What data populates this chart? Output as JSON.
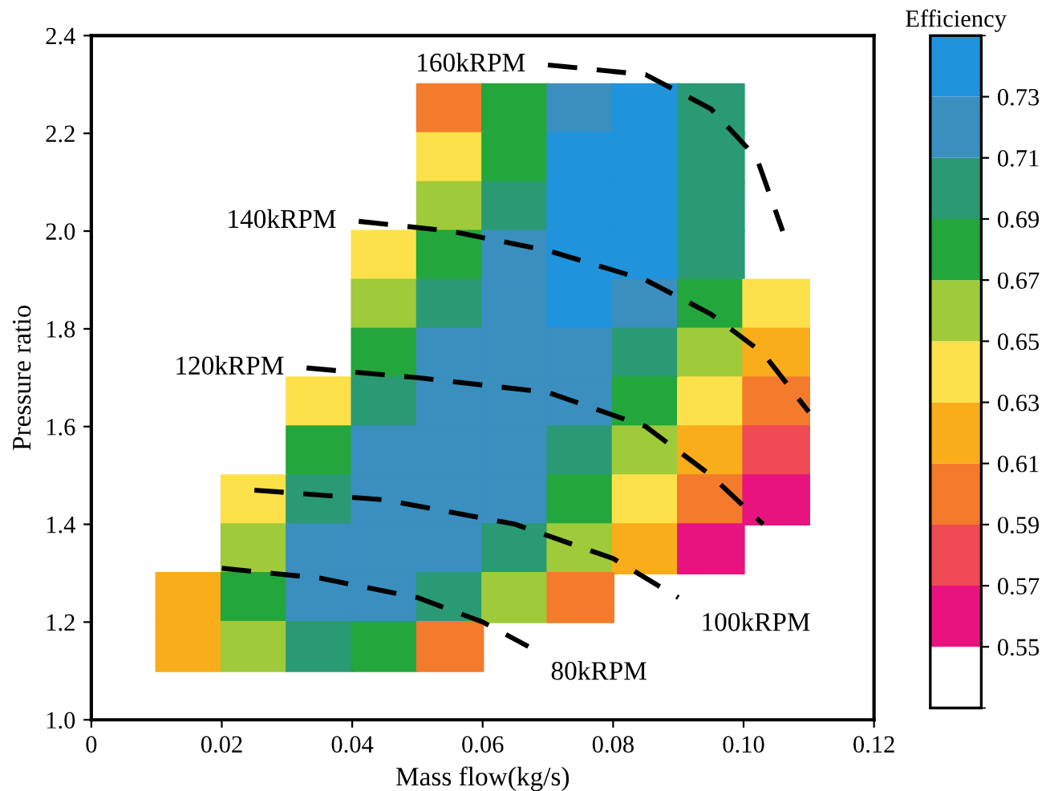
{
  "chart_data": {
    "type": "scatter",
    "xlabel": "Mass flow(kg/s)",
    "ylabel": "Pressure ratio",
    "clabel": "Efficiency",
    "colors": [
      "#ffffff",
      "#e8137f",
      "#f04a55",
      "#f47a2c",
      "#f9ad1a",
      "#fde14a",
      "#9fca3a",
      "#23a63c",
      "#2a9a74",
      "#3a8fbf",
      "#1f93dc"
    ],
    "clim": [
      0.53,
      0.75
    ],
    "cticks": [
      0.55,
      0.57,
      0.59,
      0.61,
      0.63,
      0.65,
      0.67,
      0.69,
      0.71,
      0.73
    ],
    "xlim": [
      0,
      0.12
    ],
    "xticks": [
      0,
      0.02,
      0.04,
      0.06,
      0.08,
      {
        "value": 0.1,
        "label": "0.10"
      },
      0.12
    ],
    "ylim": [
      1.0,
      2.4
    ],
    "yticks": [
      {
        "value": 1,
        "label": "1.0"
      },
      1.2,
      1.4,
      1.6,
      1.8,
      {
        "value": 2,
        "label": "2.0"
      },
      2.2,
      2.4
    ],
    "grid": false,
    "series": [
      {
        "marker": "square",
        "colors": [
          "#f47a2c",
          "#23a63c",
          "#3a8fbf",
          "#1f93dc",
          "#2a9a74",
          "#fde14a",
          "#23a63c",
          "#1f93dc",
          "#1f93dc",
          "#2a9a74",
          "#9fca3a",
          "#2a9a74",
          "#1f93dc",
          "#1f93dc",
          "#2a9a74",
          "#fde14a",
          "#23a63c",
          "#3a8fbf",
          "#1f93dc",
          "#1f93dc",
          "#2a9a74",
          "#9fca3a",
          "#2a9a74",
          "#3a8fbf",
          "#1f93dc",
          "#3a8fbf",
          "#23a63c",
          "#fde14a",
          "#23a63c",
          "#3a8fbf",
          "#3a8fbf",
          "#3a8fbf",
          "#2a9a74",
          "#9fca3a",
          "#f9ad1a",
          "#fde14a",
          "#2a9a74",
          "#3a8fbf",
          "#3a8fbf",
          "#3a8fbf",
          "#23a63c",
          "#fde14a",
          "#f47a2c",
          "#23a63c",
          "#3a8fbf",
          "#3a8fbf",
          "#3a8fbf",
          "#2a9a74",
          "#9fca3a",
          "#f9ad1a",
          "#f04a55",
          "#fde14a",
          "#2a9a74",
          "#3a8fbf",
          "#3a8fbf",
          "#3a8fbf",
          "#23a63c",
          "#fde14a",
          "#f47a2c",
          "#e8137f",
          "#9fca3a",
          "#3a8fbf",
          "#3a8fbf",
          "#3a8fbf",
          "#2a9a74",
          "#9fca3a",
          "#f9ad1a",
          "#e8137f",
          "#f9ad1a",
          "#23a63c",
          "#3a8fbf",
          "#3a8fbf",
          "#2a9a74",
          "#9fca3a",
          "#f47a2c",
          "#f9ad1a",
          "#9fca3a",
          "#2a9a74",
          "#23a63c",
          "#f47a2c"
        ],
        "x": [
          0.055,
          0.065,
          0.075,
          0.085,
          0.095,
          0.055,
          0.065,
          0.075,
          0.085,
          0.095,
          0.055,
          0.065,
          0.075,
          0.085,
          0.095,
          0.045,
          0.055,
          0.065,
          0.075,
          0.085,
          0.095,
          0.045,
          0.055,
          0.065,
          0.075,
          0.085,
          0.095,
          0.105,
          0.045,
          0.055,
          0.065,
          0.075,
          0.085,
          0.095,
          0.105,
          0.035,
          0.045,
          0.055,
          0.065,
          0.075,
          0.085,
          0.095,
          0.105,
          0.035,
          0.045,
          0.055,
          0.065,
          0.075,
          0.085,
          0.095,
          0.105,
          0.025,
          0.035,
          0.045,
          0.055,
          0.065,
          0.075,
          0.085,
          0.095,
          0.105,
          0.025,
          0.035,
          0.045,
          0.055,
          0.065,
          0.075,
          0.085,
          0.095,
          0.015,
          0.025,
          0.035,
          0.045,
          0.055,
          0.065,
          0.075,
          0.015,
          0.025,
          0.035,
          0.045,
          0.055
        ],
        "values": [
          2.25,
          2.25,
          2.25,
          2.25,
          2.25,
          2.15,
          2.15,
          2.15,
          2.15,
          2.15,
          2.05,
          2.05,
          2.05,
          2.05,
          2.05,
          1.95,
          1.95,
          1.95,
          1.95,
          1.95,
          1.95,
          1.85,
          1.85,
          1.85,
          1.85,
          1.85,
          1.85,
          1.85,
          1.75,
          1.75,
          1.75,
          1.75,
          1.75,
          1.75,
          1.75,
          1.65,
          1.65,
          1.65,
          1.65,
          1.65,
          1.65,
          1.65,
          1.65,
          1.55,
          1.55,
          1.55,
          1.55,
          1.55,
          1.55,
          1.55,
          1.55,
          1.45,
          1.45,
          1.45,
          1.45,
          1.45,
          1.45,
          1.45,
          1.45,
          1.45,
          1.35,
          1.35,
          1.35,
          1.35,
          1.35,
          1.35,
          1.35,
          1.35,
          1.25,
          1.25,
          1.25,
          1.25,
          1.25,
          1.25,
          1.25,
          1.15,
          1.15,
          1.15,
          1.15,
          1.15
        ],
        "cvalues": [
          0.6,
          0.68,
          0.72,
          0.74,
          0.7,
          0.64,
          0.68,
          0.74,
          0.74,
          0.7,
          0.66,
          0.7,
          0.74,
          0.74,
          0.7,
          0.64,
          0.68,
          0.72,
          0.74,
          0.74,
          0.7,
          0.66,
          0.7,
          0.72,
          0.74,
          0.72,
          0.68,
          0.64,
          0.68,
          0.72,
          0.72,
          0.72,
          0.7,
          0.66,
          0.62,
          0.64,
          0.7,
          0.72,
          0.72,
          0.72,
          0.68,
          0.64,
          0.6,
          0.68,
          0.72,
          0.72,
          0.72,
          0.7,
          0.66,
          0.62,
          0.58,
          0.64,
          0.7,
          0.72,
          0.72,
          0.72,
          0.68,
          0.64,
          0.6,
          0.56,
          0.66,
          0.72,
          0.72,
          0.72,
          0.7,
          0.66,
          0.62,
          0.56,
          0.62,
          0.68,
          0.72,
          0.72,
          0.7,
          0.66,
          0.6,
          0.62,
          0.66,
          0.7,
          0.68,
          0.6
        ]
      },
      {
        "type": "line",
        "name": "160kRPM",
        "color": "#000000",
        "line_style": "dashed",
        "x": [
          0.07,
          0.085,
          0.095,
          0.102,
          0.106
        ],
        "values": [
          2.34,
          2.32,
          2.25,
          2.15,
          2.0
        ]
      },
      {
        "type": "line",
        "name": "140kRPM",
        "color": "#000000",
        "line_style": "dashed",
        "x": [
          0.041,
          0.055,
          0.07,
          0.085,
          0.095,
          0.103,
          0.11
        ],
        "values": [
          2.02,
          2.0,
          1.96,
          1.9,
          1.83,
          1.75,
          1.63
        ]
      },
      {
        "type": "line",
        "name": "120kRPM",
        "color": "#000000",
        "line_style": "dashed",
        "x": [
          0.033,
          0.05,
          0.07,
          0.085,
          0.095,
          0.103
        ],
        "values": [
          1.72,
          1.7,
          1.67,
          1.6,
          1.5,
          1.4
        ]
      },
      {
        "type": "line",
        "name": "100kRPM",
        "color": "#000000",
        "line_style": "dashed",
        "x": [
          0.025,
          0.045,
          0.065,
          0.08,
          0.09
        ],
        "values": [
          1.47,
          1.45,
          1.4,
          1.33,
          1.25
        ]
      },
      {
        "type": "line",
        "name": "80kRPM",
        "color": "#000000",
        "line_style": "dashed",
        "x": [
          0.02,
          0.035,
          0.05,
          0.06,
          0.067
        ],
        "values": [
          1.31,
          1.29,
          1.25,
          1.2,
          1.15
        ]
      }
    ]
  }
}
